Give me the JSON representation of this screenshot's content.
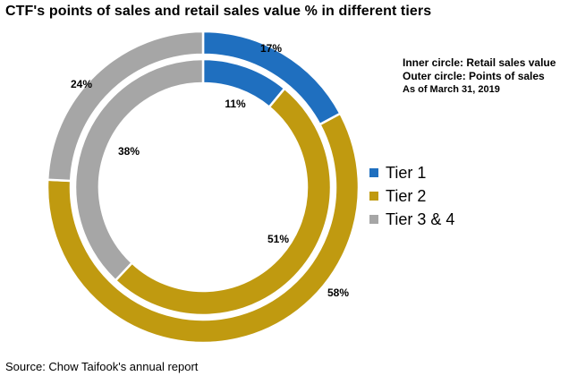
{
  "title": "CTF's points of sales and retail sales value % in different tiers",
  "annotations": {
    "inner": "Inner circle: Retail sales value",
    "outer": "Outer circle: Points of sales",
    "date": "As of March 31, 2019"
  },
  "source": "Source: Chow Taifook's annual report",
  "chart_data": {
    "type": "pie",
    "subtype": "doughnut",
    "categories": [
      "Tier 1",
      "Tier 2",
      "Tier 3 & 4"
    ],
    "colors": [
      "#1f6fbf",
      "#c09a10",
      "#a6a6a6"
    ],
    "series": [
      {
        "ring": "outer",
        "values": [
          17,
          58,
          24
        ],
        "labels": [
          "17%",
          "58%",
          "24%"
        ]
      },
      {
        "ring": "inner",
        "values": [
          11,
          51,
          38
        ],
        "labels": [
          "11%",
          "51%",
          "38%"
        ]
      }
    ],
    "legend": "right"
  }
}
